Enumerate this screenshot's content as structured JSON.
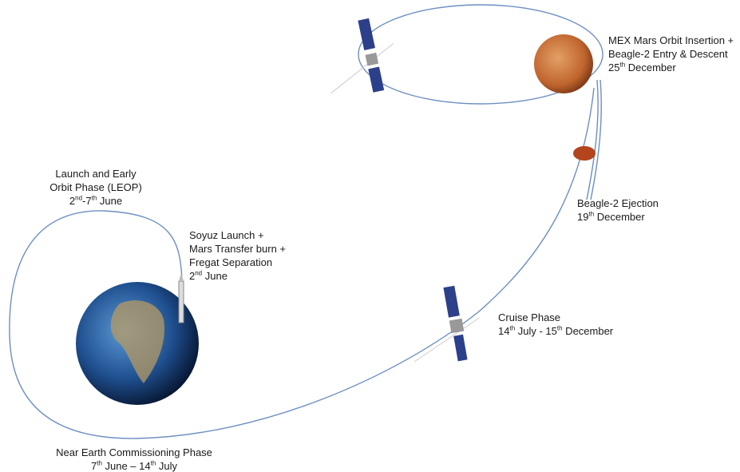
{
  "labels": [
    {
      "lines": [
        [
          "Launch and Early"
        ],
        [
          "Orbit Phase (LEOP)"
        ],
        [
          "2",
          {
            "sup": "nd"
          },
          "-7",
          {
            "sup": "th"
          },
          " June"
        ]
      ]
    },
    {
      "lines": [
        [
          "Soyuz Launch +"
        ],
        [
          "Mars Transfer burn +"
        ],
        [
          "Fregat Separation"
        ],
        [
          "2",
          {
            "sup": "nd"
          },
          " June"
        ]
      ]
    },
    {
      "lines": [
        [
          "MEX Mars Orbit Insertion +"
        ],
        [
          "Beagle-2 Entry & Descent"
        ],
        [
          "25",
          {
            "sup": "th"
          },
          " December"
        ]
      ]
    },
    {
      "lines": [
        [
          "Beagle-2 Ejection"
        ],
        [
          "19",
          {
            "sup": "th"
          },
          " December"
        ]
      ]
    },
    {
      "lines": [
        [
          "Cruise Phase"
        ],
        [
          "14",
          {
            "sup": "th"
          },
          " July - 15",
          {
            "sup": "th"
          },
          " December"
        ]
      ]
    },
    {
      "lines": [
        [
          "Near Earth Commissioning Phase"
        ],
        [
          "7",
          {
            "sup": "th"
          },
          " June – 14",
          {
            "sup": "th"
          },
          " July"
        ]
      ]
    }
  ]
}
